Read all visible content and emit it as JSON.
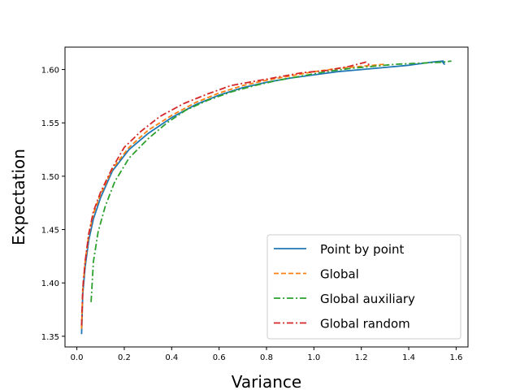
{
  "chart_data": {
    "type": "line",
    "xlabel": "Variance",
    "ylabel": "Expectation",
    "xlim": [
      -0.05,
      1.65
    ],
    "ylim": [
      1.34,
      1.621
    ],
    "xticks": [
      0.0,
      0.2,
      0.4,
      0.6,
      0.8,
      1.0,
      1.2,
      1.4,
      1.6
    ],
    "xtick_labels": [
      "0.0",
      "0.2",
      "0.4",
      "0.6",
      "0.8",
      "1.0",
      "1.2",
      "1.4",
      "1.6"
    ],
    "yticks": [
      1.35,
      1.4,
      1.45,
      1.5,
      1.55,
      1.6
    ],
    "ytick_labels": [
      "1.35",
      "1.40",
      "1.45",
      "1.50",
      "1.55",
      "1.60"
    ],
    "grid": false,
    "legend_position": "lower-right",
    "series": [
      {
        "name": "Point by point",
        "color": "#1f77b4",
        "dash": "solid",
        "x": [
          0.02,
          0.025,
          0.035,
          0.05,
          0.07,
          0.1,
          0.15,
          0.22,
          0.3,
          0.4,
          0.5,
          0.6,
          0.7,
          0.8,
          0.9,
          1.0,
          1.1,
          1.2,
          1.3,
          1.4,
          1.5,
          1.545,
          1.55,
          1.54,
          1.55
        ],
        "y": [
          1.352,
          1.39,
          1.415,
          1.44,
          1.46,
          1.48,
          1.505,
          1.525,
          1.54,
          1.555,
          1.567,
          1.576,
          1.583,
          1.588,
          1.592,
          1.595,
          1.598,
          1.6,
          1.602,
          1.604,
          1.607,
          1.608,
          1.605,
          1.608,
          1.607
        ]
      },
      {
        "name": "Global",
        "color": "#ff7f0e",
        "dash": "dashed",
        "x": [
          0.02,
          0.025,
          0.035,
          0.05,
          0.07,
          0.1,
          0.15,
          0.22,
          0.3,
          0.4,
          0.5,
          0.6,
          0.7,
          0.8,
          0.9,
          1.0,
          1.1,
          1.2,
          1.3
        ],
        "y": [
          1.357,
          1.395,
          1.42,
          1.445,
          1.465,
          1.483,
          1.507,
          1.527,
          1.543,
          1.557,
          1.569,
          1.578,
          1.585,
          1.59,
          1.594,
          1.598,
          1.601,
          1.603,
          1.605
        ]
      },
      {
        "name": "Global auxiliary",
        "color": "#2ca02c",
        "dash": "dashdot",
        "x": [
          0.06,
          0.07,
          0.09,
          0.12,
          0.16,
          0.22,
          0.3,
          0.38,
          0.46,
          0.55,
          0.65,
          0.75,
          0.85,
          0.95,
          1.05,
          1.15,
          1.25,
          1.35,
          1.45,
          1.55,
          1.58
        ],
        "y": [
          1.382,
          1.42,
          1.448,
          1.472,
          1.495,
          1.517,
          1.535,
          1.55,
          1.562,
          1.571,
          1.579,
          1.585,
          1.59,
          1.594,
          1.598,
          1.601,
          1.603,
          1.605,
          1.606,
          1.607,
          1.608
        ]
      },
      {
        "name": "Global random",
        "color": "#d62728",
        "dash": "dashdot",
        "x": [
          0.02,
          0.025,
          0.035,
          0.05,
          0.07,
          0.1,
          0.15,
          0.2,
          0.27,
          0.35,
          0.45,
          0.55,
          0.65,
          0.75,
          0.85,
          0.95,
          1.05,
          1.15,
          1.22,
          1.24
        ],
        "y": [
          1.36,
          1.395,
          1.42,
          1.446,
          1.467,
          1.485,
          1.508,
          1.527,
          1.542,
          1.556,
          1.568,
          1.577,
          1.585,
          1.589,
          1.593,
          1.597,
          1.599,
          1.603,
          1.607,
          1.603
        ]
      }
    ]
  }
}
